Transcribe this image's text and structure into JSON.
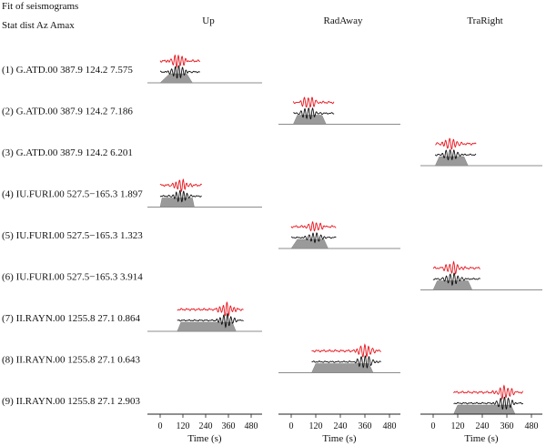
{
  "header": {
    "title": "Fit of seismograms",
    "columns_label": "Stat dist Az Amax"
  },
  "chart_data": {
    "type": "line",
    "title": "Fit of seismograms",
    "columns": [
      "Up",
      "RadAway",
      "TraRight"
    ],
    "xlabel": "Time (s)",
    "xticks": [
      0,
      120,
      240,
      360,
      480
    ],
    "xlim": [
      -40,
      480
    ],
    "legend": "none",
    "grid": false,
    "series_colors": {
      "observed": "#e8141c",
      "synthetic": "#111111",
      "window": "#9a9a9a"
    },
    "rows": [
      {
        "label": "(1) G.ATD.00 387.9 124.2 7.575",
        "component": "Up",
        "window": [
          0,
          50,
          140,
          170
        ],
        "phase_center": 95,
        "amplitude": 1.0
      },
      {
        "label": "(2) G.ATD.00 387.9 124.2 7.186",
        "component": "RadAway",
        "window": [
          10,
          30,
          150,
          170
        ],
        "phase_center": 85,
        "amplitude": 0.9
      },
      {
        "label": "(3) G.ATD.00 387.9 124.2 6.201",
        "component": "TraRight",
        "window": [
          10,
          30,
          150,
          170
        ],
        "phase_center": 85,
        "amplitude": 0.85
      },
      {
        "label": "(4) IU.FURI.00 527.5−165.3 1.897",
        "component": "Up",
        "window": [
          0,
          10,
          170,
          180
        ],
        "phase_center": 110,
        "amplitude": 0.9
      },
      {
        "label": "(5) IU.FURI.00 527.5−165.3 1.323",
        "component": "RadAway",
        "window": [
          0,
          30,
          160,
          180
        ],
        "phase_center": 115,
        "amplitude": 0.75
      },
      {
        "label": "(6) IU.FURI.00 527.5−165.3 3.914",
        "component": "TraRight",
        "window": [
          0,
          20,
          170,
          190
        ],
        "phase_center": 95,
        "amplitude": 0.9
      },
      {
        "label": "(7) II.RAYN.00 1255.8 27.1 0.864",
        "component": "Up",
        "window": [
          90,
          110,
          380,
          400
        ],
        "phase_center": 350,
        "amplitude": 1.0
      },
      {
        "label": "(8) II.RAYN.00 1255.8 27.1 0.643",
        "component": "RadAway",
        "window": [
          100,
          120,
          380,
          400
        ],
        "phase_center": 360,
        "amplitude": 1.0
      },
      {
        "label": "(9) II.RAYN.00 1255.8 27.1 2.903",
        "component": "TraRight",
        "window": [
          100,
          120,
          380,
          400
        ],
        "phase_center": 350,
        "amplitude": 1.0
      }
    ]
  }
}
